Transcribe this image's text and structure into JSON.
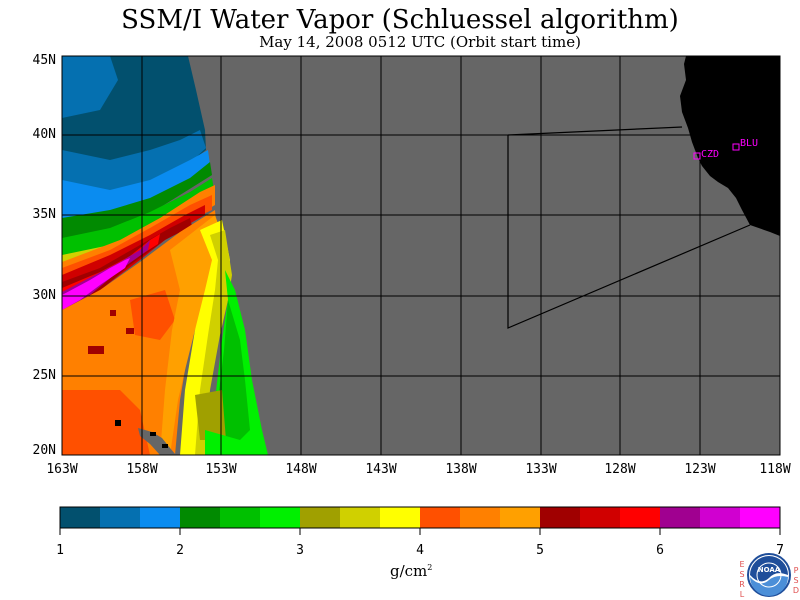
{
  "title": "SSM/I Water Vapor (Schluessel algorithm)",
  "subtitle": "May 14, 2008  0512 UTC  (Orbit start time)",
  "map": {
    "lat_labels": [
      "45N",
      "40N",
      "35N",
      "30N",
      "25N",
      "20N"
    ],
    "lon_labels": [
      "163W",
      "158W",
      "153W",
      "148W",
      "143W",
      "138W",
      "133W",
      "128W",
      "123W",
      "118W"
    ],
    "lat_range": [
      20,
      45
    ],
    "lon_range": [
      -163,
      -118
    ],
    "stations": [
      {
        "id": "CZD",
        "lat": 38.6,
        "lon": -123.2
      },
      {
        "id": "BLU",
        "lat": 39.3,
        "lon": -120.9
      }
    ],
    "colors": {
      "land": "#000000",
      "no_data": "#666666",
      "grid": "#000000"
    }
  },
  "colorbar": {
    "ticks": [
      "1",
      "2",
      "3",
      "4",
      "5",
      "6",
      "7"
    ],
    "units": "g/cm",
    "units_exp": "2",
    "colors": [
      "#02506e",
      "#0570b0",
      "#0a8cf0",
      "#018a01",
      "#00c000",
      "#00f000",
      "#a0a000",
      "#d0d000",
      "#ffff00",
      "#ff5000",
      "#ff8000",
      "#ffa000",
      "#a00000",
      "#d00000",
      "#ff0000",
      "#a00090",
      "#d000d0",
      "#ff00ff"
    ]
  },
  "logo": {
    "left_text": "ESRL",
    "right_text": "PSD",
    "badge_text": "NOAA"
  }
}
